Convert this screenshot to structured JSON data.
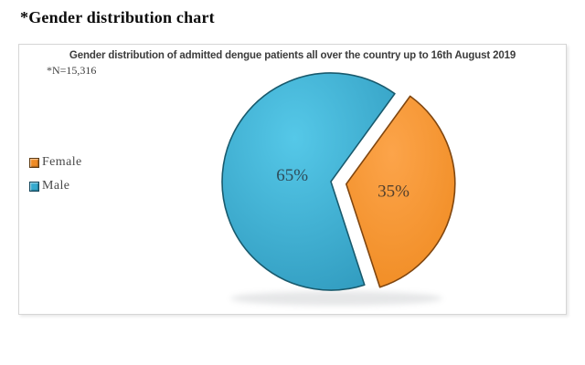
{
  "page": {
    "title": "*Gender distribution chart"
  },
  "panel": {
    "background": "#ffffff",
    "border_color": "#d6d6d6"
  },
  "legend": {
    "position": "left-middle",
    "items": [
      {
        "label": "Female",
        "color": "#ef8c26",
        "border": "#5d3a12"
      },
      {
        "label": "Male",
        "color": "#35aacf",
        "border": "#14455a"
      }
    ]
  },
  "chart_data": {
    "type": "pie",
    "title": "Gender distribution of admitted dengue patients all over the country up to 16th August 2019",
    "note": "*N=15,316",
    "total_n": "15,316",
    "unit": "percent",
    "start_angle_deg": 36,
    "legend_position": "left",
    "slices": [
      {
        "label": "Female",
        "value": 35,
        "data_label": "35%",
        "exploded": true,
        "color_center": "#fca44a",
        "color_edge": "#ef8a20",
        "stroke": "#80460f",
        "label_color": "#54402c"
      },
      {
        "label": "Male",
        "value": 65,
        "data_label": "65%",
        "exploded": false,
        "color_center": "#55c8e8",
        "color_edge": "#2f99bd",
        "stroke": "#195a6d",
        "label_color": "#2e4c5a"
      }
    ]
  }
}
